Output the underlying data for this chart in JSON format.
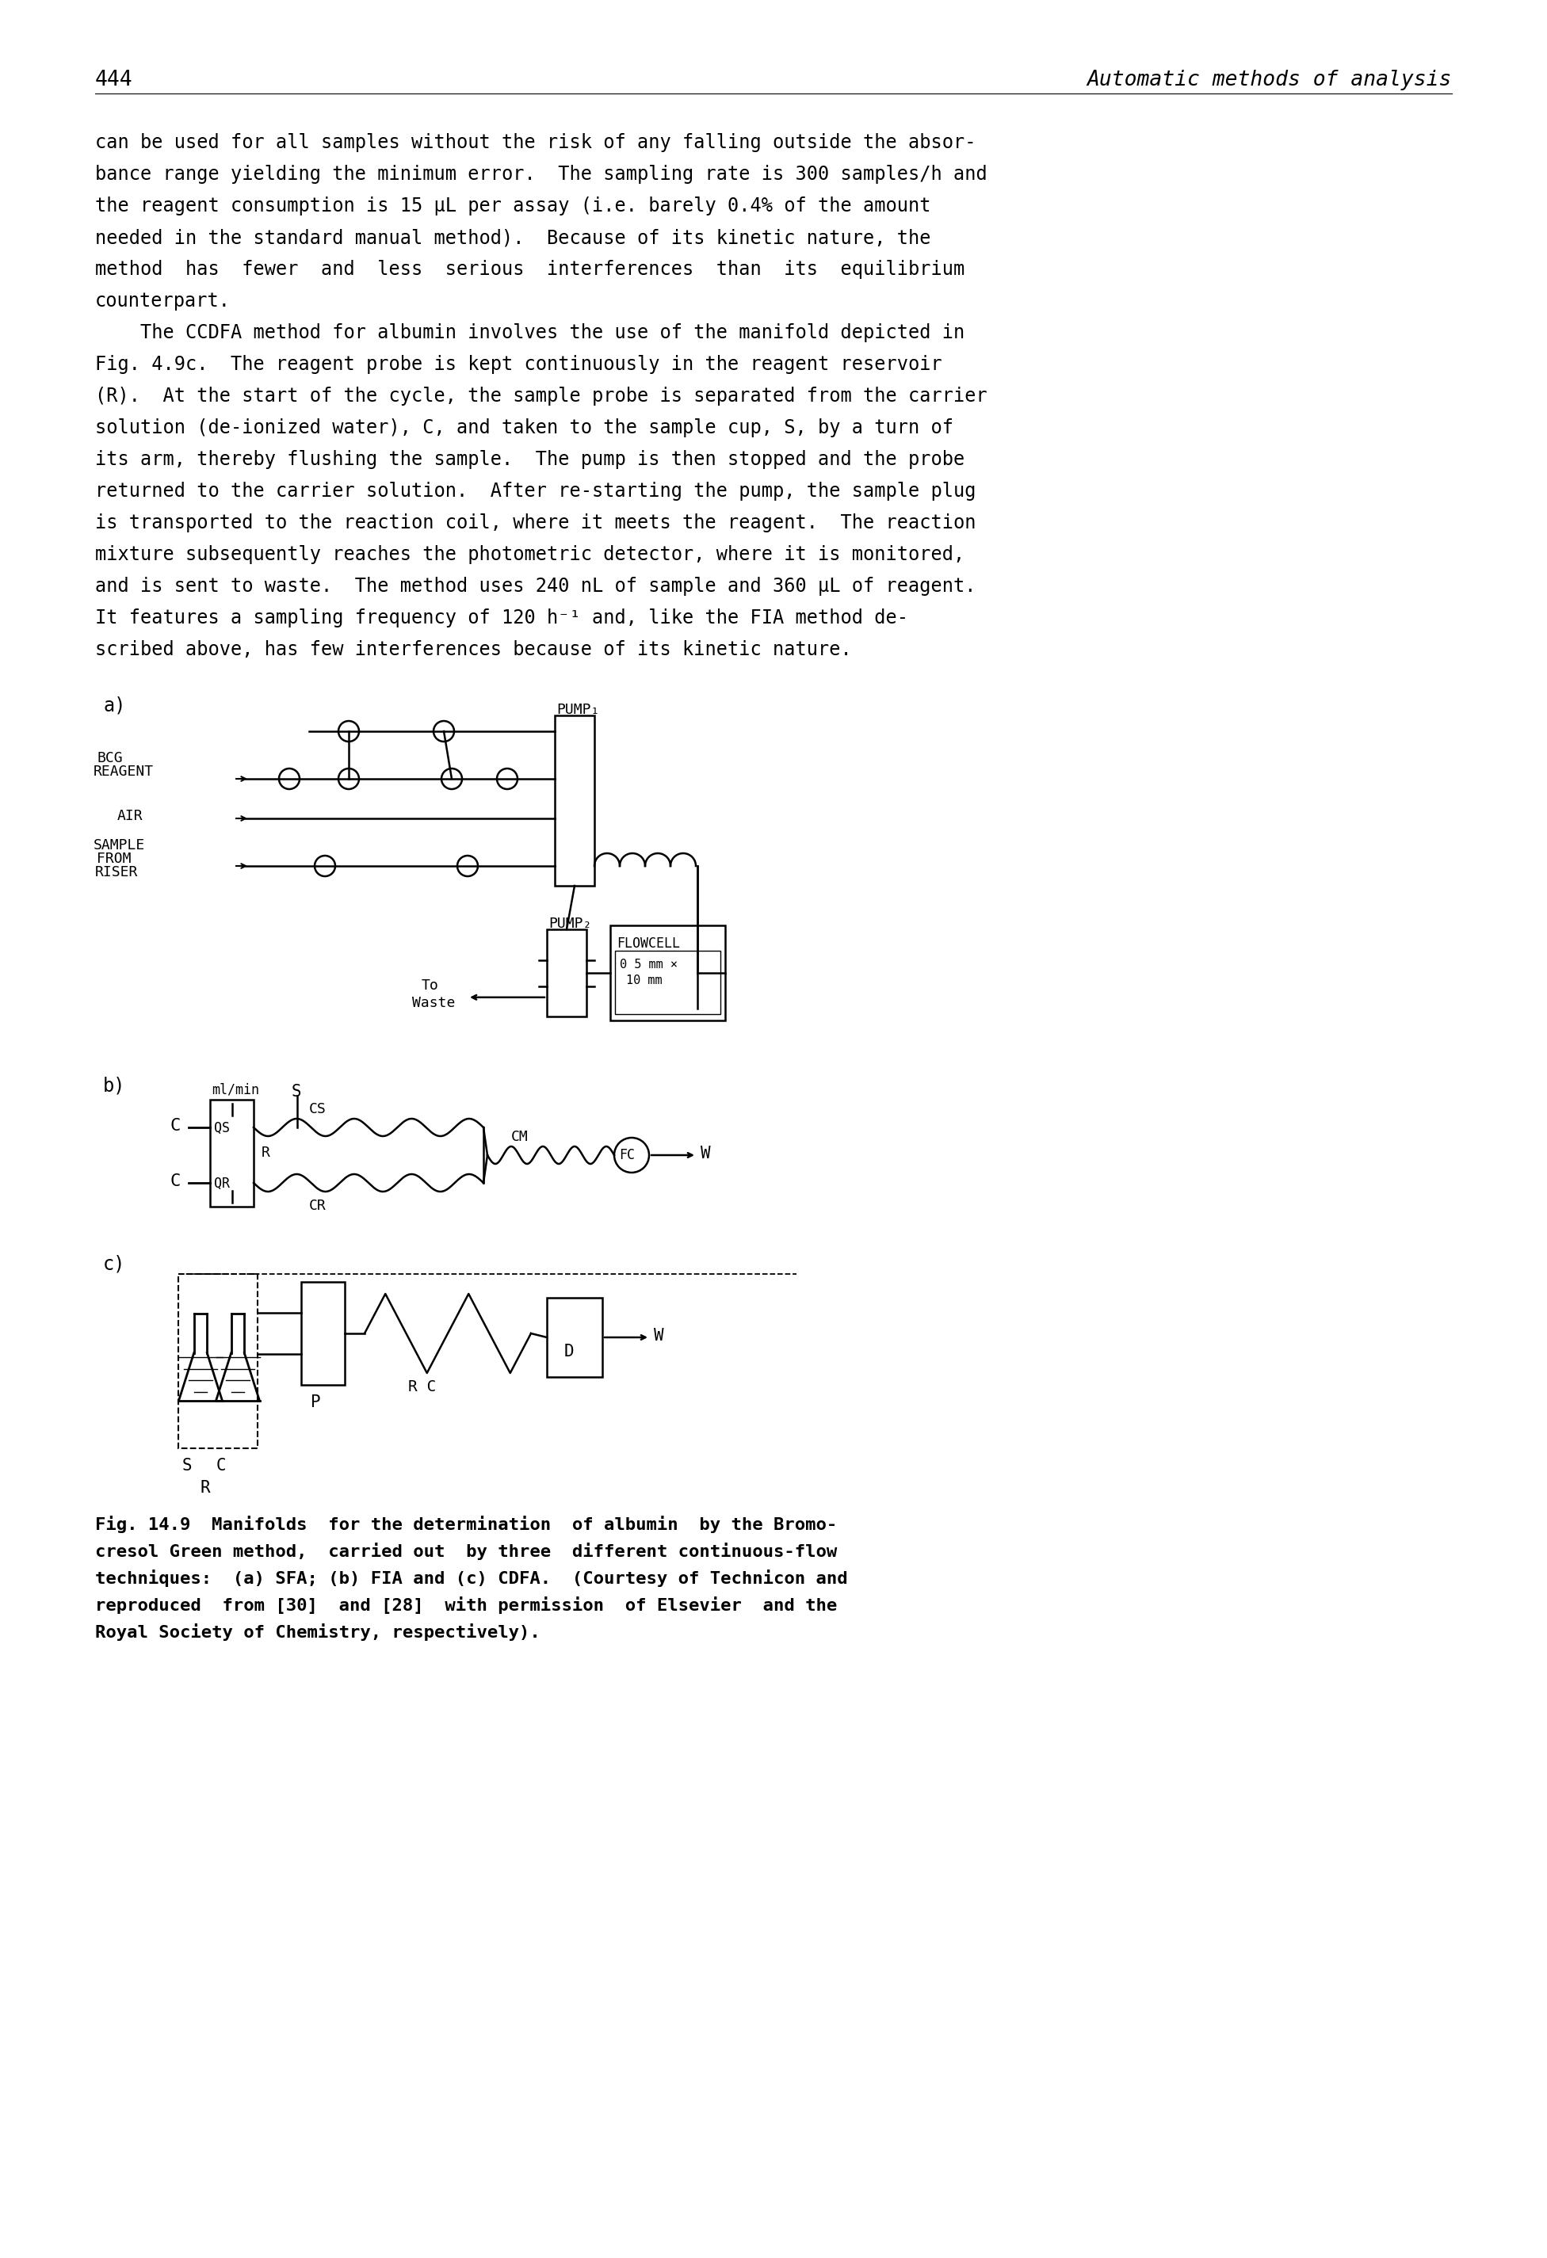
{
  "page_number": "444",
  "header_right": "Automatic methods of analysis",
  "body_text_lines": [
    "can be used for all samples without the risk of any falling outside the absor-",
    "bance range yielding the minimum error.  The sampling rate is 300 samples/h and",
    "the reagent consumption is 15 μL per assay (i.e. barely 0.4% of the amount",
    "needed in the standard manual method).  Because of its kinetic nature, the",
    "method  has  fewer  and  less  serious  interferences  than  its  equilibrium",
    "counterpart.",
    "    The CCDFA method for albumin involves the use of the manifold depicted in",
    "Fig. 4.9c.  The reagent probe is kept continuously in the reagent reservoir",
    "(R).  At the start of the cycle, the sample probe is separated from the carrier",
    "solution (de-ionized water), C, and taken to the sample cup, S, by a turn of",
    "its arm, thereby flushing the sample.  The pump is then stopped and the probe",
    "returned to the carrier solution.  After re-starting the pump, the sample plug",
    "is transported to the reaction coil, where it meets the reagent.  The reaction",
    "mixture subsequently reaches the photometric detector, where it is monitored,",
    "and is sent to waste.  The method uses 240 nL of sample and 360 μL of reagent.",
    "It features a sampling frequency of 120 h⁻¹ and, like the FIA method de-",
    "scribed above, has few interferences because of its kinetic nature."
  ],
  "caption_lines": [
    "Fig. 14.9  Manifolds  for the determination  of albumin  by the Bromo-",
    "cresol Green method,  carried out  by three  different continuous-flow",
    "techniques:  (a) SFA; (b) FIA and (c) CDFA.  (Courtesy of Technicon and",
    "reproduced  from [30]  and [28]  with permission  of Elsevier  and the",
    "Royal Society of Chemistry, respectively)."
  ],
  "bg_color": "#ffffff",
  "text_color": "#000000"
}
